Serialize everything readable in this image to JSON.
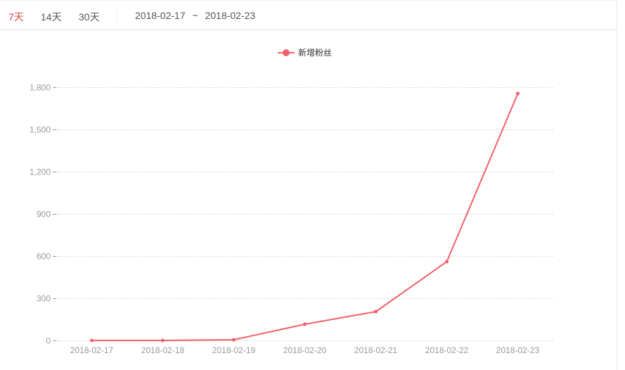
{
  "toolbar": {
    "tabs": [
      {
        "label": "7天",
        "active": true
      },
      {
        "label": "14天",
        "active": false
      },
      {
        "label": "30天",
        "active": false
      }
    ],
    "date_start": "2018-02-17",
    "date_sep": "~",
    "date_end": "2018-02-23"
  },
  "chart_data": {
    "type": "line",
    "categories": [
      "2018-02-17",
      "2018-02-18",
      "2018-02-19",
      "2018-02-20",
      "2018-02-21",
      "2018-02-22",
      "2018-02-23"
    ],
    "series": [
      {
        "name": "新增粉丝",
        "values": [
          0,
          0,
          5,
          115,
          205,
          560,
          1755
        ],
        "color": "#f0606a"
      }
    ],
    "yticks": [
      "0",
      "300",
      "600",
      "900",
      "1,200",
      "1,500",
      "1,800"
    ],
    "ylim": [
      0,
      1800
    ],
    "grid": true,
    "legend": "top-center"
  }
}
